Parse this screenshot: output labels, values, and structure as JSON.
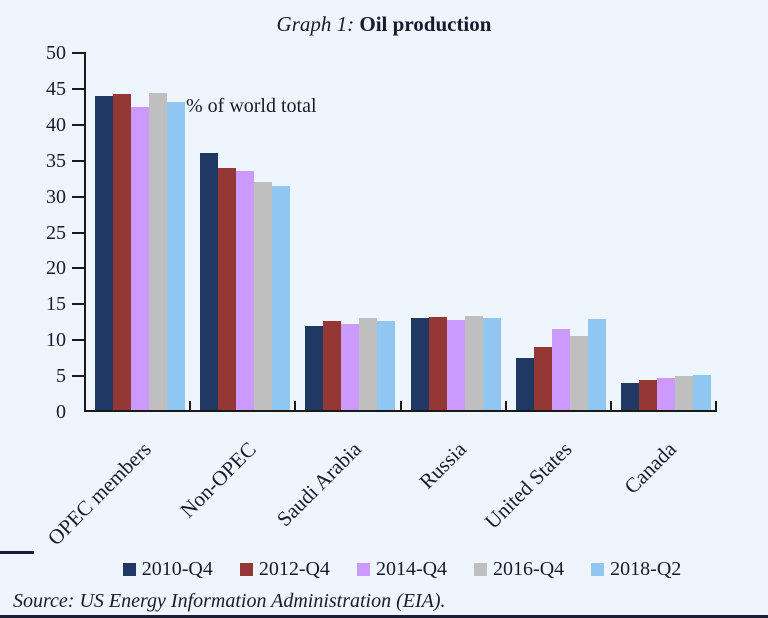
{
  "title": {
    "prefix": "Graph 1:",
    "main": "Oil production"
  },
  "chart_data": {
    "type": "bar",
    "title": "Graph 1: Oil production",
    "ylabel": "% of world total",
    "xlabel": "",
    "categories": [
      "OPEC members",
      "Non-OPEC",
      "Saudi Arabia",
      "Russia",
      "United States",
      "Canada"
    ],
    "series": [
      {
        "name": "2010-Q4",
        "color": "#1F3864",
        "values": [
          43.8,
          35.8,
          11.7,
          12.8,
          7.2,
          3.7
        ]
      },
      {
        "name": "2012-Q4",
        "color": "#943735",
        "values": [
          44.0,
          33.7,
          12.4,
          13.0,
          8.8,
          4.2
        ]
      },
      {
        "name": "2014-Q4",
        "color": "#CC99FF",
        "values": [
          42.2,
          33.3,
          12.0,
          12.6,
          11.3,
          4.5
        ]
      },
      {
        "name": "2016-Q4",
        "color": "#BFBFBF",
        "values": [
          44.2,
          31.8,
          12.8,
          13.1,
          10.3,
          4.7
        ]
      },
      {
        "name": "2018-Q2",
        "color": "#8FC7F2",
        "values": [
          42.9,
          31.2,
          12.4,
          12.8,
          12.7,
          4.9
        ]
      }
    ],
    "ylim": [
      0,
      50
    ],
    "ytick_step": 5,
    "yticks": [
      0,
      5,
      10,
      15,
      20,
      25,
      30,
      35,
      40,
      45,
      50
    ],
    "grid": false,
    "legend_position": "bottom"
  },
  "source": "Source: US Energy Information Administration (EIA).",
  "colors": {
    "background": "#EEF5FC",
    "text": "#1A1A2E",
    "axis": "#1A1A1A",
    "bottom_rule": "#1B1B3A"
  }
}
